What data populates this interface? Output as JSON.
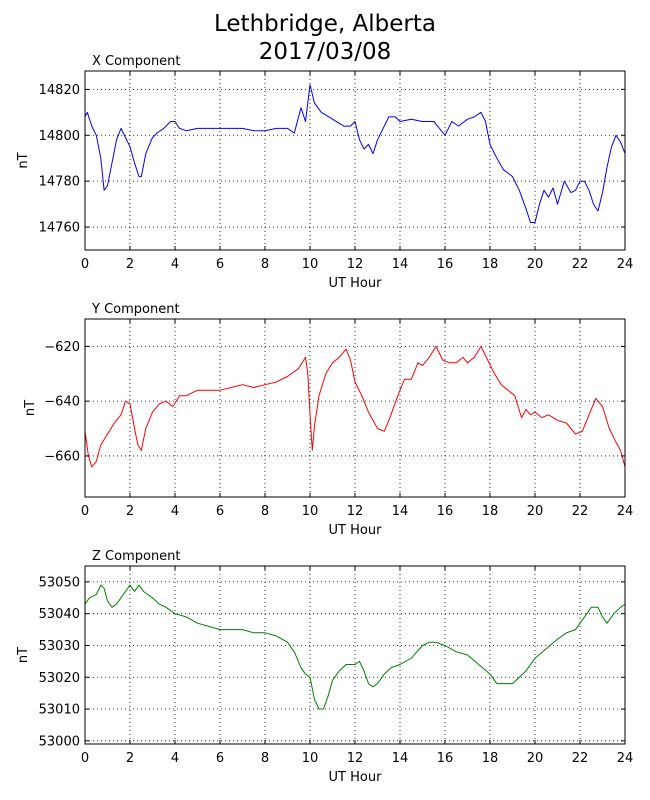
{
  "figure": {
    "title_line1": "Lethbridge, Alberta",
    "title_line2": "2017/03/08"
  },
  "chart_data": [
    {
      "type": "line",
      "title": "X Component",
      "xlabel": "UT Hour",
      "ylabel": "nT",
      "xlim": [
        0,
        24
      ],
      "ylim": [
        14750,
        14828
      ],
      "xticks": [
        0,
        2,
        4,
        6,
        8,
        10,
        12,
        14,
        16,
        18,
        20,
        22,
        24
      ],
      "yticks": [
        14760,
        14780,
        14800,
        14820
      ],
      "grid": true,
      "series": [
        {
          "color": "#0000ff",
          "x": [
            0,
            0.1,
            0.3,
            0.5,
            0.7,
            0.85,
            1.0,
            1.2,
            1.4,
            1.6,
            1.8,
            2.0,
            2.2,
            2.4,
            2.5,
            2.7,
            3.0,
            3.2,
            3.5,
            3.8,
            4.0,
            4.2,
            4.5,
            5.0,
            5.5,
            6.0,
            6.5,
            7.0,
            7.5,
            8.0,
            8.5,
            9.0,
            9.3,
            9.6,
            9.8,
            10.0,
            10.2,
            10.5,
            11.0,
            11.5,
            11.8,
            12.0,
            12.2,
            12.4,
            12.6,
            12.8,
            13.0,
            13.2,
            13.5,
            13.8,
            14.0,
            14.5,
            15.0,
            15.5,
            16.0,
            16.3,
            16.6,
            17.0,
            17.3,
            17.6,
            17.8,
            18.0,
            18.3,
            18.6,
            19.0,
            19.3,
            19.6,
            19.8,
            20.0,
            20.2,
            20.4,
            20.6,
            20.8,
            21.0,
            21.3,
            21.6,
            21.8,
            22.0,
            22.2,
            22.4,
            22.6,
            22.8,
            23.0,
            23.2,
            23.4,
            23.6,
            23.8,
            24.0
          ],
          "y": [
            14808,
            14810,
            14804,
            14800,
            14790,
            14776,
            14778,
            14788,
            14798,
            14803,
            14799,
            14795,
            14788,
            14782,
            14782,
            14792,
            14799,
            14801,
            14803,
            14806,
            14806,
            14803,
            14802,
            14803,
            14803,
            14803,
            14803,
            14803,
            14802,
            14802,
            14803,
            14803,
            14801,
            14812,
            14806,
            14822,
            14814,
            14810,
            14807,
            14804,
            14804,
            14806,
            14798,
            14794,
            14796,
            14792,
            14798,
            14802,
            14808,
            14808,
            14806,
            14807,
            14806,
            14806,
            14800,
            14806,
            14804,
            14807,
            14808,
            14810,
            14806,
            14796,
            14790,
            14785,
            14782,
            14776,
            14768,
            14762,
            14762,
            14770,
            14776,
            14773,
            14777,
            14770,
            14780,
            14775,
            14776,
            14780,
            14780,
            14776,
            14770,
            14767,
            14775,
            14786,
            14795,
            14800,
            14797,
            14792
          ]
        }
      ]
    },
    {
      "type": "line",
      "title": "Y Component",
      "xlabel": "UT Hour",
      "ylabel": "nT",
      "xlim": [
        0,
        24
      ],
      "ylim": [
        -675,
        -610
      ],
      "xticks": [
        0,
        2,
        4,
        6,
        8,
        10,
        12,
        14,
        16,
        18,
        20,
        22,
        24
      ],
      "yticks": [
        -620,
        -640,
        -660
      ],
      "grid": true,
      "series": [
        {
          "color": "#ff0000",
          "x": [
            0,
            0.15,
            0.3,
            0.5,
            0.7,
            1.0,
            1.3,
            1.6,
            1.8,
            2.0,
            2.2,
            2.35,
            2.5,
            2.7,
            3.0,
            3.3,
            3.6,
            3.9,
            4.2,
            4.5,
            5.0,
            5.5,
            6.0,
            6.5,
            7.0,
            7.5,
            8.0,
            8.5,
            9.0,
            9.5,
            9.8,
            9.9,
            10.0,
            10.1,
            10.2,
            10.4,
            10.7,
            11.0,
            11.3,
            11.6,
            11.8,
            12.0,
            12.3,
            12.6,
            13.0,
            13.3,
            13.6,
            13.9,
            14.2,
            14.5,
            14.8,
            15.0,
            15.3,
            15.6,
            15.9,
            16.2,
            16.5,
            16.8,
            17.0,
            17.3,
            17.6,
            17.9,
            18.2,
            18.5,
            18.8,
            19.1,
            19.4,
            19.6,
            19.8,
            20.0,
            20.3,
            20.6,
            21.0,
            21.4,
            21.8,
            22.1,
            22.4,
            22.7,
            23.0,
            23.3,
            23.6,
            23.8,
            24.0
          ],
          "y": [
            -651,
            -660,
            -664,
            -662,
            -656,
            -652,
            -648,
            -645,
            -640,
            -641,
            -650,
            -656,
            -658,
            -650,
            -644,
            -641,
            -640,
            -642,
            -638,
            -638,
            -636,
            -636,
            -636,
            -635,
            -634,
            -635,
            -634,
            -633,
            -631,
            -628,
            -624,
            -630,
            -645,
            -658,
            -649,
            -638,
            -630,
            -626,
            -624,
            -621,
            -625,
            -633,
            -638,
            -644,
            -650,
            -651,
            -645,
            -638,
            -632,
            -632,
            -626,
            -627,
            -624,
            -620,
            -625,
            -626,
            -626,
            -624,
            -626,
            -624,
            -620,
            -625,
            -630,
            -634,
            -636,
            -638,
            -646,
            -643,
            -645,
            -644,
            -646,
            -645,
            -647,
            -648,
            -652,
            -651,
            -645,
            -639,
            -642,
            -650,
            -655,
            -658,
            -664
          ]
        }
      ]
    },
    {
      "type": "line",
      "title": "Z Component",
      "xlabel": "UT Hour",
      "ylabel": "nT",
      "xlim": [
        0,
        24
      ],
      "ylim": [
        52999,
        53055
      ],
      "xticks": [
        0,
        2,
        4,
        6,
        8,
        10,
        12,
        14,
        16,
        18,
        20,
        22,
        24
      ],
      "yticks": [
        53000,
        53010,
        53020,
        53030,
        53040,
        53050
      ],
      "grid": true,
      "series": [
        {
          "color": "#008000",
          "x": [
            0,
            0.2,
            0.5,
            0.7,
            0.85,
            1.0,
            1.2,
            1.4,
            1.6,
            1.8,
            2.0,
            2.2,
            2.4,
            2.6,
            2.8,
            3.0,
            3.3,
            3.6,
            4.0,
            4.5,
            5.0,
            5.5,
            6.0,
            6.5,
            7.0,
            7.5,
            8.0,
            8.5,
            9.0,
            9.3,
            9.6,
            9.8,
            10.0,
            10.2,
            10.4,
            10.6,
            10.8,
            11.0,
            11.3,
            11.6,
            12.0,
            12.2,
            12.4,
            12.6,
            12.8,
            13.0,
            13.3,
            13.6,
            14.0,
            14.5,
            15.0,
            15.3,
            15.6,
            16.0,
            16.5,
            17.0,
            17.5,
            18.0,
            18.3,
            18.6,
            19.0,
            19.3,
            19.6,
            20.0,
            20.5,
            21.0,
            21.4,
            21.8,
            22.2,
            22.5,
            22.8,
            23.0,
            23.2,
            23.5,
            23.8,
            24.0
          ],
          "y": [
            53043,
            53045,
            53046,
            53049,
            53048,
            53044,
            53042,
            53043,
            53045,
            53047,
            53049,
            53047,
            53049,
            53047,
            53046,
            53045,
            53043,
            53042,
            53040,
            53039,
            53037,
            53036,
            53035,
            53035,
            53035,
            53034,
            53034,
            53033,
            53031,
            53028,
            53023,
            53021,
            53020,
            53013,
            53010,
            53010,
            53014,
            53019,
            53022,
            53024,
            53024,
            53025,
            53022,
            53018,
            53017,
            53018,
            53021,
            53023,
            53024,
            53026,
            53030,
            53031,
            53031,
            53030,
            53028,
            53027,
            53024,
            53021,
            53018,
            53018,
            53018,
            53020,
            53022,
            53026,
            53029,
            53032,
            53034,
            53035,
            53039,
            53042,
            53042,
            53039,
            53037,
            53040,
            53042,
            53043
          ]
        }
      ]
    }
  ]
}
